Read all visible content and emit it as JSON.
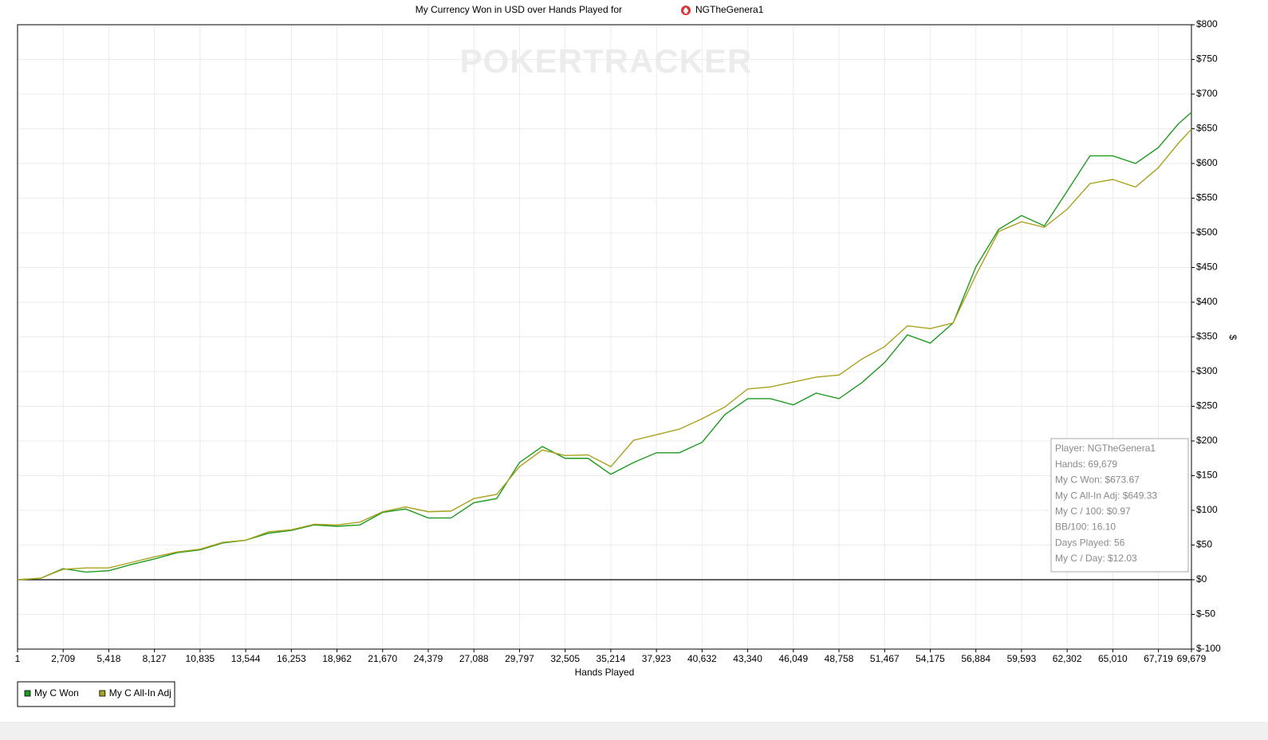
{
  "chart_data": {
    "type": "line",
    "title": "My Currency Won in USD over Hands Played for",
    "player": "NGTheGenera1",
    "watermark": "POKERTRACKER",
    "x_label": "Hands Played",
    "y_label": "$",
    "x": [
      1,
      1355,
      2709,
      4063,
      5418,
      6772,
      8127,
      9481,
      10835,
      12190,
      13544,
      14898,
      16253,
      17607,
      18962,
      20316,
      21670,
      23025,
      24379,
      25733,
      27088,
      28442,
      29797,
      31151,
      32505,
      33860,
      35214,
      36568,
      37923,
      39277,
      40632,
      41986,
      43340,
      44694,
      46049,
      47403,
      48758,
      50112,
      51467,
      52821,
      54175,
      55529,
      56884,
      58238,
      59593,
      60947,
      62302,
      63656,
      65010,
      66365,
      67719,
      68900,
      69679
    ],
    "series": [
      {
        "name": "My C Won",
        "color": "#1f9a1f",
        "values": [
          0,
          2,
          16,
          11,
          13,
          22,
          30,
          39,
          43,
          53,
          57,
          67,
          71,
          79,
          77,
          79,
          97,
          102,
          89,
          89,
          111,
          117,
          169,
          192,
          175,
          175,
          152,
          169,
          183,
          183,
          198,
          238,
          261,
          261,
          252,
          269,
          261,
          284,
          313,
          353,
          341,
          370,
          451,
          505,
          525,
          510,
          560,
          611,
          611,
          600,
          623,
          657,
          673.67
        ]
      },
      {
        "name": "My C All-In Adj",
        "color": "#a9a21f",
        "values": [
          0,
          2,
          15,
          17,
          17,
          25,
          33,
          40,
          44,
          54,
          57,
          69,
          72,
          80,
          79,
          83,
          98,
          105,
          98,
          99,
          117,
          123,
          163,
          187,
          179,
          180,
          163,
          201,
          209,
          217,
          232,
          249,
          275,
          278,
          285,
          292,
          295,
          318,
          336,
          366,
          362,
          370,
          439,
          502,
          516,
          508,
          534,
          571,
          577,
          566,
          594,
          629,
          649.33
        ]
      }
    ],
    "xlim": [
      1,
      69679
    ],
    "xticks": [
      {
        "value": 1,
        "label": "1"
      },
      {
        "value": 2709,
        "label": "2,709"
      },
      {
        "value": 5418,
        "label": "5,418"
      },
      {
        "value": 8127,
        "label": "8,127"
      },
      {
        "value": 10835,
        "label": "10,835"
      },
      {
        "value": 13544,
        "label": "13,544"
      },
      {
        "value": 16253,
        "label": "16,253"
      },
      {
        "value": 18962,
        "label": "18,962"
      },
      {
        "value": 21670,
        "label": "21,670"
      },
      {
        "value": 24379,
        "label": "24,379"
      },
      {
        "value": 27088,
        "label": "27,088"
      },
      {
        "value": 29797,
        "label": "29,797"
      },
      {
        "value": 32505,
        "label": "32,505"
      },
      {
        "value": 35214,
        "label": "35,214"
      },
      {
        "value": 37923,
        "label": "37,923"
      },
      {
        "value": 40632,
        "label": "40,632"
      },
      {
        "value": 43340,
        "label": "43,340"
      },
      {
        "value": 46049,
        "label": "46,049"
      },
      {
        "value": 48758,
        "label": "48,758"
      },
      {
        "value": 51467,
        "label": "51,467"
      },
      {
        "value": 54175,
        "label": "54,175"
      },
      {
        "value": 56884,
        "label": "56,884"
      },
      {
        "value": 59593,
        "label": "59,593"
      },
      {
        "value": 62302,
        "label": "62,302"
      },
      {
        "value": 65010,
        "label": "65,010"
      },
      {
        "value": 67719,
        "label": "67,719"
      },
      {
        "value": 69679,
        "label": "69,679"
      }
    ],
    "ylim": [
      -100,
      800
    ],
    "yticks": [
      {
        "value": 800,
        "label": "$800"
      },
      {
        "value": 750,
        "label": "$750"
      },
      {
        "value": 700,
        "label": "$700"
      },
      {
        "value": 650,
        "label": "$650"
      },
      {
        "value": 600,
        "label": "$600"
      },
      {
        "value": 550,
        "label": "$550"
      },
      {
        "value": 500,
        "label": "$500"
      },
      {
        "value": 450,
        "label": "$450"
      },
      {
        "value": 400,
        "label": "$400"
      },
      {
        "value": 350,
        "label": "$350"
      },
      {
        "value": 300,
        "label": "$300"
      },
      {
        "value": 250,
        "label": "$250"
      },
      {
        "value": 200,
        "label": "$200"
      },
      {
        "value": 150,
        "label": "$150"
      },
      {
        "value": 100,
        "label": "$100"
      },
      {
        "value": 50,
        "label": "$50"
      },
      {
        "value": 0,
        "label": "$0"
      },
      {
        "value": -50,
        "label": "$-50"
      },
      {
        "value": -100,
        "label": "$-100"
      }
    ],
    "grid": true,
    "legend": "bottom-left",
    "info_box": [
      "Player: NGTheGenera1",
      "Hands: 69,679",
      "My C Won: $673.67",
      "My C All-In Adj: $649.33",
      "My C / 100: $0.97",
      "BB/100: 16.10",
      "Days Played: 56",
      "My C / Day: $12.03"
    ]
  }
}
